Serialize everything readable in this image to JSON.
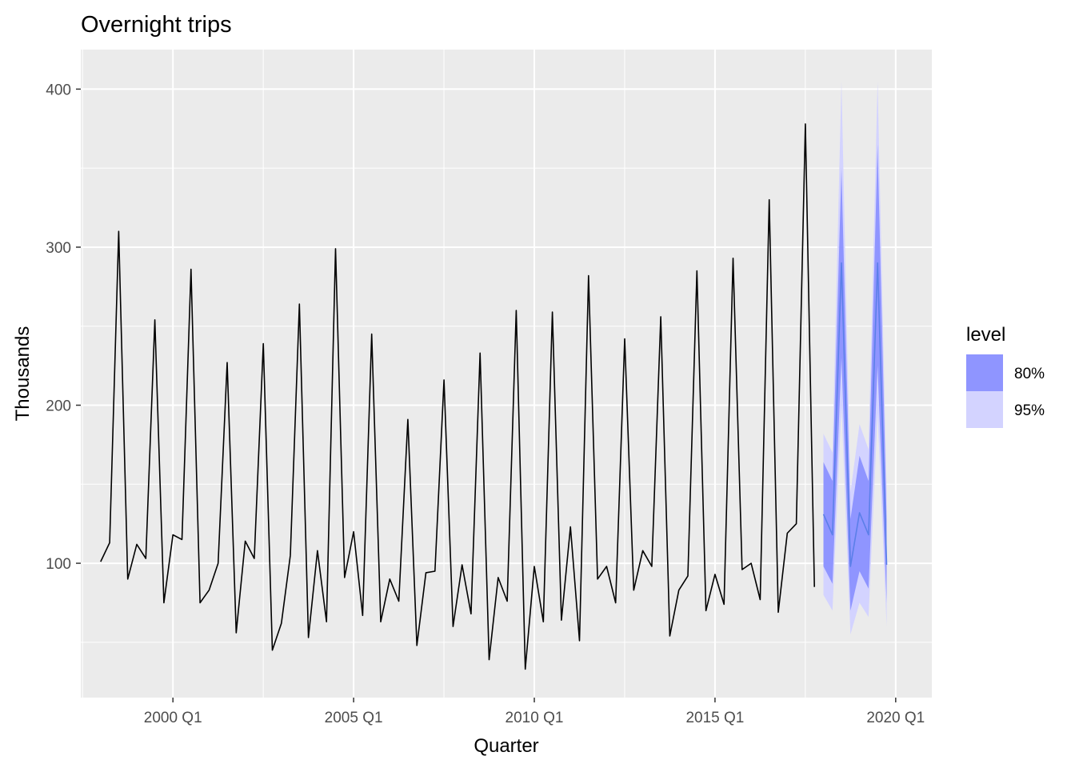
{
  "chart_data": {
    "type": "line",
    "title": "Overnight trips",
    "xlabel": "Quarter",
    "ylabel": "Thousands",
    "x_tick_labels": [
      "2000 Q1",
      "2005 Q1",
      "2010 Q1",
      "2015 Q1",
      "2020 Q1"
    ],
    "x_tick_values": [
      2000.0,
      2005.0,
      2010.0,
      2015.0,
      2020.0
    ],
    "y_ticks": [
      100,
      200,
      300,
      400
    ],
    "xlim": [
      1997.45,
      2021.0
    ],
    "ylim": [
      15,
      425
    ],
    "grid": true,
    "legend": {
      "title": "level",
      "position": "right",
      "entries": [
        {
          "label": "80%",
          "color": "#8f95ff"
        },
        {
          "label": "95%",
          "color": "#d3d3ff"
        }
      ]
    },
    "colors": {
      "panel_bg": "#ebebeb",
      "grid": "#ffffff",
      "series": "#000000",
      "forecast_line": "#5b7fe9",
      "band80": "#8f95ff",
      "band95": "#d3d3ff"
    },
    "series": [
      {
        "x_start": 1998.0,
        "x_step": 0.25,
        "values": [
          101,
          113,
          310,
          90,
          112,
          103,
          254,
          75,
          118,
          115,
          286,
          75,
          83,
          100,
          227,
          56,
          114,
          103,
          239,
          45,
          62,
          105,
          264,
          53,
          108,
          63,
          299,
          91,
          120,
          67,
          245,
          63,
          90,
          76,
          191,
          48,
          94,
          95,
          216,
          60,
          99,
          68,
          233,
          39,
          91,
          76,
          260,
          33,
          98,
          63,
          259,
          64,
          123,
          51,
          282,
          90,
          98,
          75,
          242,
          83,
          108,
          98,
          256,
          54,
          83,
          92,
          285,
          70,
          93,
          74,
          293,
          96,
          100,
          77,
          330,
          69,
          119,
          125,
          378,
          85
        ]
      }
    ],
    "forecast": {
      "x": [
        2018.0,
        2018.25,
        2018.5,
        2018.75,
        2019.0,
        2019.25,
        2019.5,
        2019.75
      ],
      "mean": [
        131,
        118,
        290,
        98,
        132,
        118,
        290,
        99
      ],
      "lower80": [
        98,
        87,
        230,
        70,
        95,
        84,
        225,
        75
      ],
      "upper80": [
        164,
        152,
        350,
        128,
        168,
        152,
        365,
        128
      ],
      "lower95": [
        80,
        70,
        200,
        55,
        75,
        66,
        195,
        60
      ],
      "upper95": [
        182,
        170,
        405,
        145,
        188,
        172,
        405,
        145
      ]
    }
  }
}
